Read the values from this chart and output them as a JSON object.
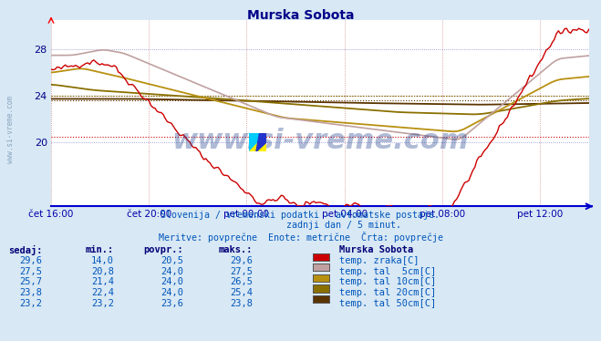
{
  "title": "Murska Sobota",
  "bg_color": "#d8e8f4",
  "plot_bg_color": "#ffffff",
  "grid_color_v": "#ddaaaa",
  "grid_color_h": "#aaaadd",
  "x_label_color": "#0000aa",
  "y_label_color": "#000088",
  "title_color": "#000088",
  "x_ticks": [
    "čet 16:00",
    "čet 20:00",
    "pet 00:00",
    "pet 04:00",
    "pet 08:00",
    "pet 12:00"
  ],
  "x_tick_positions": [
    0,
    48,
    96,
    144,
    192,
    240
  ],
  "n_points": 265,
  "y_ticks": [
    20,
    24,
    28
  ],
  "ylim": [
    14.5,
    30.5
  ],
  "subtitle1": "Slovenija / vremenski podatki - avtomatske postaje.",
  "subtitle2": "                zadnji dan / 5 minut.",
  "subtitle3": "Meritve: povprečne  Enote: metrične  Črta: povprečje",
  "subtitle_color": "#0055bb",
  "table_header_color": "#000077",
  "table_data_color": "#0055bb",
  "table_data": [
    [
      29.6,
      14.0,
      20.5,
      29.6
    ],
    [
      27.5,
      20.8,
      24.0,
      27.5
    ],
    [
      25.7,
      21.4,
      24.0,
      26.5
    ],
    [
      23.8,
      22.4,
      24.0,
      25.4
    ],
    [
      23.2,
      23.2,
      23.6,
      23.8
    ]
  ],
  "series_labels": [
    "temp. zraka[C]",
    "temp. tal  5cm[C]",
    "temp. tal 10cm[C]",
    "temp. tal 20cm[C]",
    "temp. tal 50cm[C]"
  ],
  "series_colors": [
    "#cc0000",
    "#c0a0a0",
    "#b89010",
    "#8a7000",
    "#5a3400"
  ],
  "povpr_values": [
    20.5,
    24.0,
    24.0,
    24.0,
    23.6
  ],
  "watermark": "www.si-vreme.com",
  "side_text": "www.si-vreme.com"
}
